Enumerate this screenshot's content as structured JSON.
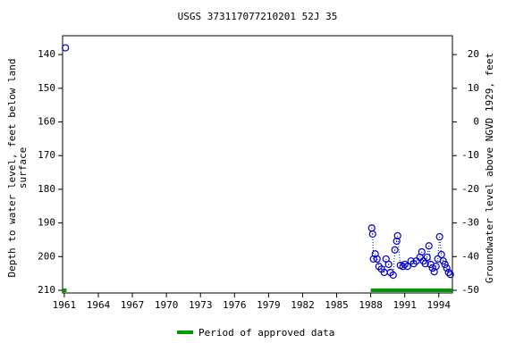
{
  "chart_data": {
    "type": "scatter",
    "title": "USGS 373117077210201 52J 35",
    "ylabel": [
      "Depth to water level, feet below land",
      "surface"
    ],
    "y2label": "Groundwater level above NGVD 1929, feet",
    "xlim": [
      1960.85,
      1995.2
    ],
    "ylim": [
      134.4,
      210.8
    ],
    "y_inverted": true,
    "y2lim": [
      25.6,
      -50.8
    ],
    "xticks": [
      1961,
      1964,
      1967,
      1970,
      1973,
      1976,
      1979,
      1982,
      1985,
      1988,
      1991,
      1994
    ],
    "yticks": [
      140,
      150,
      160,
      170,
      180,
      190,
      200,
      210
    ],
    "y2ticks": [
      20,
      10,
      0,
      -10,
      -20,
      -30,
      -40,
      -50
    ],
    "series": [
      {
        "name": "Depth to water level",
        "color": "#0000cc",
        "x": [
          1961.1,
          1988.09,
          1988.17,
          1988.24,
          1988.4,
          1988.56,
          1988.72,
          1988.95,
          1989.19,
          1989.35,
          1989.58,
          1989.74,
          1989.98,
          1990.13,
          1990.29,
          1990.37,
          1990.61,
          1990.84,
          1991.0,
          1991.24,
          1991.55,
          1991.79,
          1992.02,
          1992.34,
          1992.5,
          1992.65,
          1992.81,
          1992.97,
          1993.13,
          1993.28,
          1993.44,
          1993.6,
          1993.76,
          1993.91,
          1994.07,
          1994.23,
          1994.39,
          1994.54,
          1994.7,
          1994.86,
          1995.02
        ],
        "values": [
          138.0,
          191.5,
          193.3,
          200.7,
          199.2,
          200.7,
          202.9,
          203.7,
          204.7,
          200.7,
          202.3,
          204.7,
          205.5,
          198.0,
          195.4,
          193.8,
          202.6,
          202.9,
          202.3,
          202.9,
          201.3,
          202.1,
          201.3,
          200.2,
          198.6,
          201.3,
          202.1,
          200.2,
          196.8,
          202.3,
          203.4,
          204.5,
          202.9,
          200.7,
          194.1,
          199.4,
          201.3,
          202.3,
          203.4,
          204.7,
          205.3
        ]
      }
    ],
    "approved": {
      "name": "Period of approved data",
      "color": "#009900",
      "periods": [
        [
          1960.85,
          1961.2
        ],
        [
          1988.0,
          1995.2
        ]
      ]
    },
    "grid": false
  }
}
